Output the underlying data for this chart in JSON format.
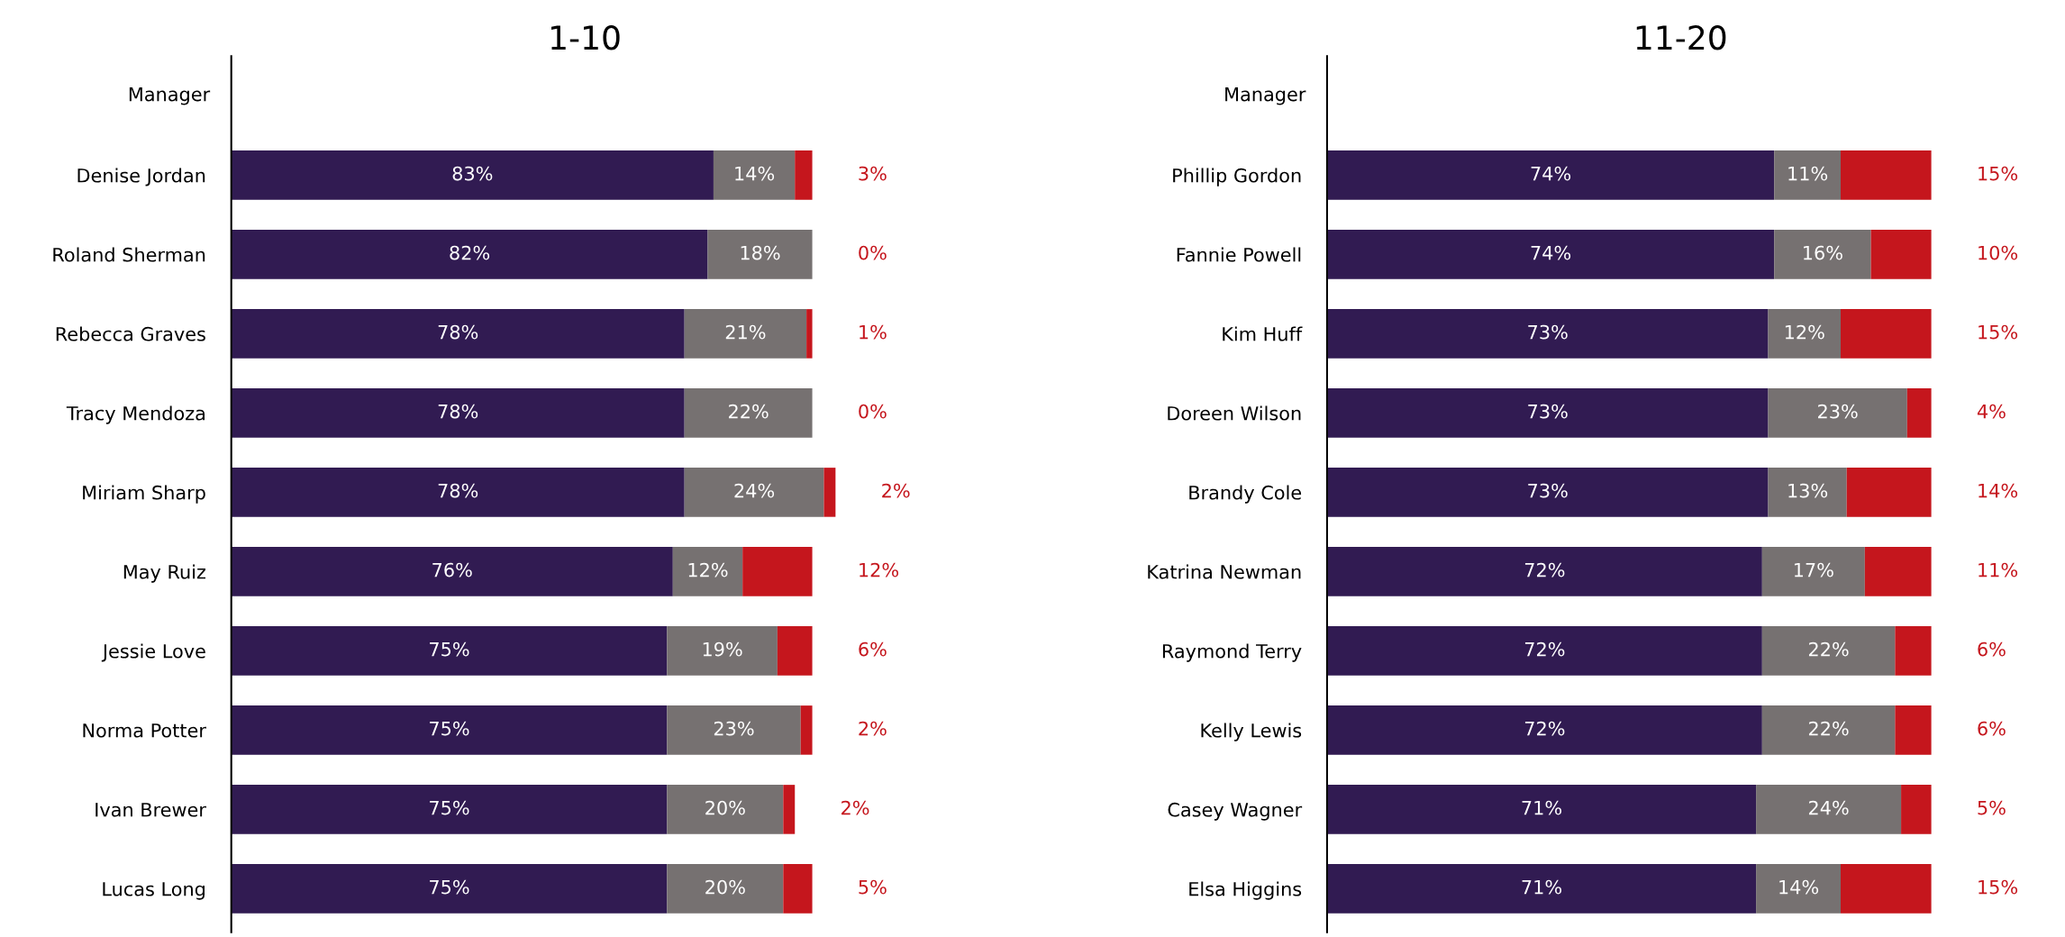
{
  "chart_data": [
    {
      "type": "bar",
      "orientation": "horizontal",
      "stacked": true,
      "title": "1-10",
      "ylabel": "Manager",
      "tick_labels": "y",
      "categories": [
        "Denise Jordan",
        "Roland Sherman",
        "Rebecca Graves",
        "Tracy Mendoza",
        "Miriam Sharp",
        "May Ruiz",
        "Jessie Love",
        "Norma Potter",
        "Ivan Brewer",
        "Lucas Long"
      ],
      "series": [
        {
          "color": "#311b52",
          "values": [
            83,
            82,
            78,
            78,
            78,
            76,
            75,
            75,
            75,
            75
          ],
          "value_labels": [
            "83%",
            "82%",
            "78%",
            "78%",
            "78%",
            "76%",
            "75%",
            "75%",
            "75%",
            "75%"
          ]
        },
        {
          "color": "#767171",
          "values": [
            14,
            18,
            21,
            22,
            24,
            12,
            19,
            23,
            20,
            20
          ],
          "value_labels": [
            "14%",
            "18%",
            "21%",
            "22%",
            "24%",
            "12%",
            "19%",
            "23%",
            "20%",
            "20%"
          ]
        },
        {
          "color": "#c5161d",
          "values": [
            3,
            0,
            1,
            0,
            2,
            12,
            6,
            2,
            2,
            5
          ],
          "value_labels": [
            "3%",
            "0%",
            "1%",
            "0%",
            "2%",
            "12%",
            "6%",
            "2%",
            "2%",
            "5%"
          ]
        }
      ]
    },
    {
      "type": "bar",
      "orientation": "horizontal",
      "stacked": true,
      "title": "11-20",
      "ylabel": "Manager",
      "tick_labels": "y",
      "categories": [
        "Phillip Gordon",
        "Fannie Powell",
        "Kim Huff",
        "Doreen Wilson",
        "Brandy Cole",
        "Katrina Newman",
        "Raymond Terry",
        "Kelly Lewis",
        "Casey Wagner",
        "Elsa Higgins"
      ],
      "series": [
        {
          "color": "#311b52",
          "values": [
            74,
            74,
            73,
            73,
            73,
            72,
            72,
            72,
            71,
            71
          ],
          "value_labels": [
            "74%",
            "74%",
            "73%",
            "73%",
            "73%",
            "72%",
            "72%",
            "72%",
            "71%",
            "71%"
          ]
        },
        {
          "color": "#767171",
          "values": [
            11,
            16,
            12,
            23,
            13,
            17,
            22,
            22,
            24,
            14
          ],
          "value_labels": [
            "11%",
            "16%",
            "12%",
            "23%",
            "13%",
            "17%",
            "22%",
            "22%",
            "24%",
            "14%"
          ]
        },
        {
          "color": "#c5161d",
          "values": [
            15,
            10,
            15,
            4,
            14,
            11,
            6,
            6,
            5,
            15
          ],
          "value_labels": [
            "15%",
            "10%",
            "15%",
            "4%",
            "14%",
            "11%",
            "6%",
            "6%",
            "5%",
            "15%"
          ]
        }
      ]
    }
  ]
}
